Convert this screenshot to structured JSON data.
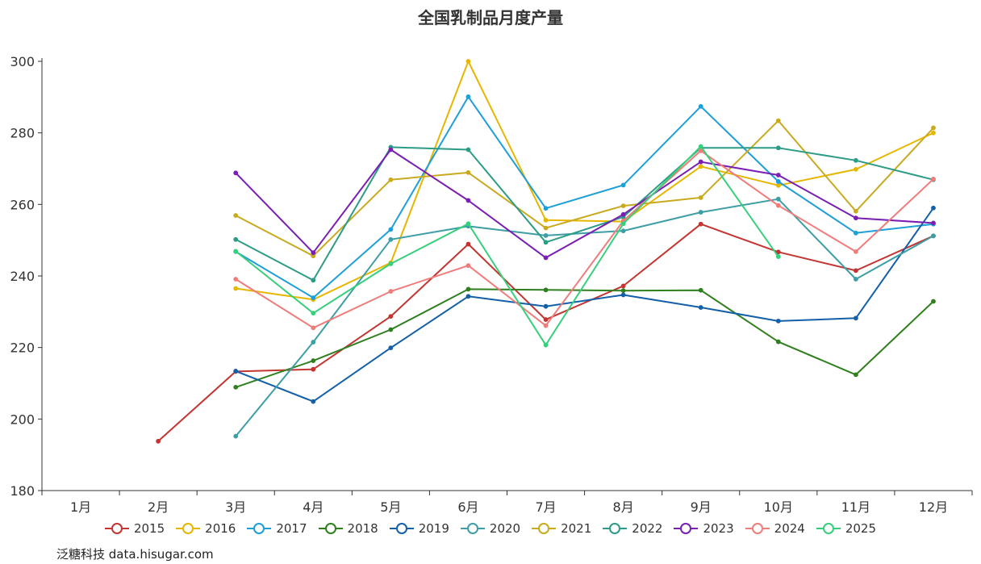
{
  "chart_data": {
    "type": "line",
    "title": "全国乳制品月度产量",
    "categories": [
      "1月",
      "2月",
      "3月",
      "4月",
      "5月",
      "6月",
      "7月",
      "8月",
      "9月",
      "10月",
      "11月",
      "12月"
    ],
    "ylim": [
      180,
      300
    ],
    "yticks": [
      "180",
      "200",
      "220",
      "240",
      "260",
      "280",
      "300"
    ],
    "grid": false,
    "legend_position": "bottom",
    "series": [
      {
        "name": "2015",
        "color": "#c23531",
        "values": [
          null,
          193.8,
          213.3,
          213.9,
          228.7,
          248.9,
          227.8,
          237.2,
          254.5,
          246.7,
          241.5,
          251.2
        ]
      },
      {
        "name": "2016",
        "color": "#e6b600",
        "values": [
          null,
          null,
          236.5,
          233.4,
          243.7,
          300.0,
          255.6,
          255.2,
          270.6,
          265.3,
          269.8,
          280.0
        ]
      },
      {
        "name": "2017",
        "color": "#1e9fd8",
        "values": [
          null,
          null,
          246.8,
          233.9,
          253.0,
          290.1,
          258.9,
          265.4,
          287.4,
          266.4,
          252.0,
          254.5
        ]
      },
      {
        "name": "2018",
        "color": "#2f7f1f",
        "values": [
          null,
          null,
          208.9,
          216.3,
          225.0,
          236.3,
          236.1,
          235.9,
          236.0,
          221.6,
          212.4,
          232.9
        ]
      },
      {
        "name": "2019",
        "color": "#1460a8",
        "values": [
          null,
          null,
          213.4,
          204.9,
          219.9,
          234.3,
          231.5,
          234.7,
          231.2,
          227.4,
          228.2,
          259.0
        ]
      },
      {
        "name": "2020",
        "color": "#3d9ea5",
        "values": [
          null,
          null,
          195.2,
          221.5,
          250.2,
          253.9,
          251.3,
          252.6,
          257.8,
          261.5,
          239.1,
          251.2
        ]
      },
      {
        "name": "2021",
        "color": "#c9aa1f",
        "values": [
          null,
          null,
          256.9,
          245.6,
          266.9,
          268.9,
          253.4,
          259.6,
          261.9,
          283.4,
          258.1,
          281.4
        ]
      },
      {
        "name": "2022",
        "color": "#2c9c86",
        "values": [
          null,
          null,
          250.2,
          238.8,
          276.0,
          275.3,
          249.4,
          256.5,
          275.8,
          275.8,
          272.3,
          266.9
        ]
      },
      {
        "name": "2023",
        "color": "#7a1fb4",
        "values": [
          null,
          null,
          268.8,
          246.5,
          275.3,
          261.1,
          245.1,
          257.2,
          271.9,
          268.2,
          256.2,
          254.8
        ]
      },
      {
        "name": "2024",
        "color": "#f07c7c",
        "values": [
          null,
          null,
          239.1,
          225.5,
          235.7,
          242.9,
          226.1,
          255.4,
          275.0,
          259.7,
          246.8,
          267.1
        ]
      },
      {
        "name": "2025",
        "color": "#38cf7c",
        "values": [
          null,
          null,
          246.9,
          229.6,
          243.4,
          254.6,
          220.7,
          254.6,
          276.2,
          245.4,
          null,
          null
        ]
      }
    ]
  },
  "source": "泛糖科技 data.hisugar.com"
}
